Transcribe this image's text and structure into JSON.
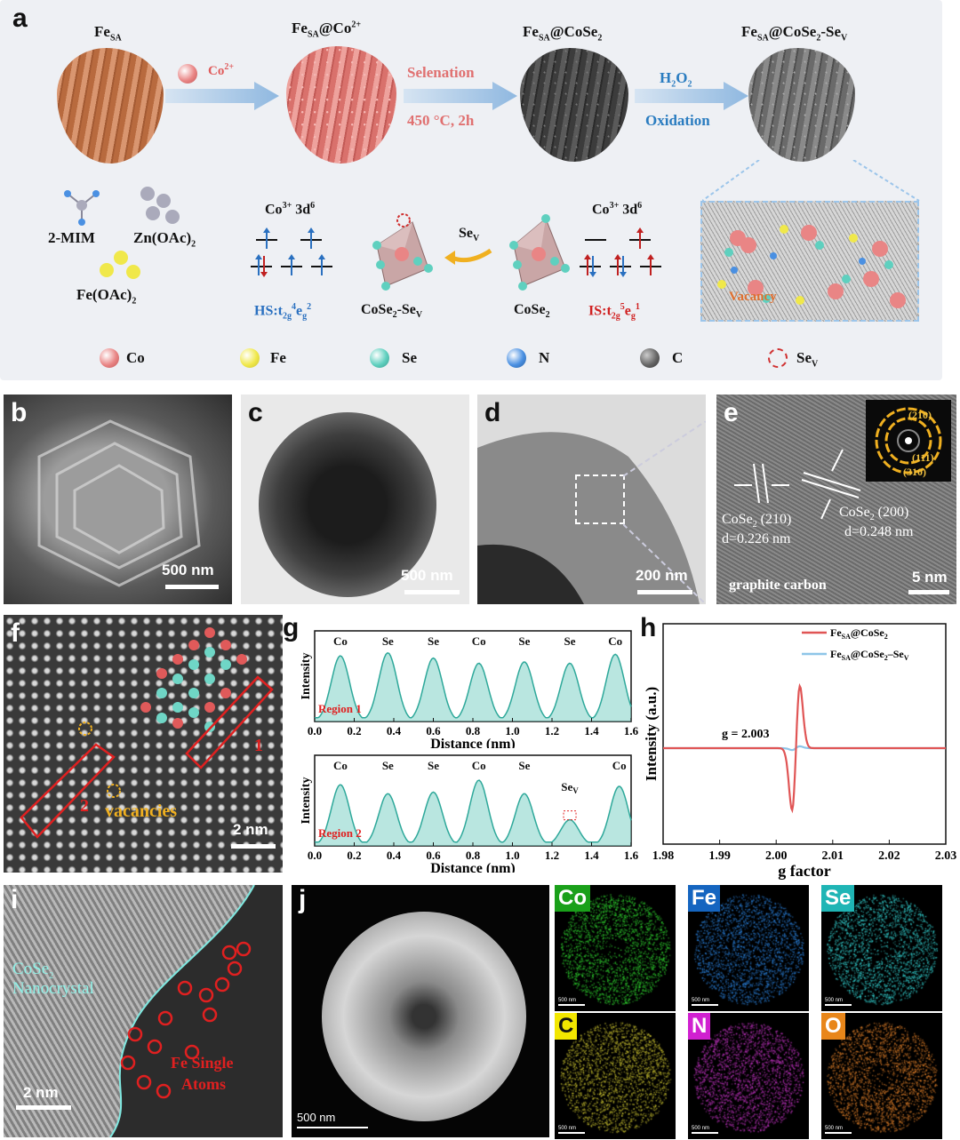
{
  "panel_letters": {
    "a": "a",
    "b": "b",
    "c": "c",
    "d": "d",
    "e": "e",
    "f": "f",
    "g": "g",
    "h": "h",
    "i": "i",
    "j": "j"
  },
  "panel_a": {
    "stage_1": {
      "base": "Fe",
      "sub": "SA"
    },
    "stage_2": {
      "base": "Fe",
      "sub": "SA",
      "rest": "@Co",
      "sup": "2+"
    },
    "stage_3": {
      "base": "Fe",
      "sub": "SA",
      "rest": "@CoSe",
      "sub2": "2"
    },
    "stage_4": {
      "base": "Fe",
      "sub": "SA",
      "rest": "@CoSe",
      "sub2": "2",
      "rest2": "-Se",
      "sub3": "V"
    },
    "arrow_1": {
      "ion": "Co",
      "sup": "2+"
    },
    "arrow_2": {
      "top": "Selenation",
      "bottom": "450 °C, 2h"
    },
    "arrow_3": {
      "top_base": "H",
      "top_sub": "2",
      "top_mid": "O",
      "top_sub2": "2",
      "bottom": "Oxidation"
    },
    "precursors": {
      "mim": "2-MIM",
      "zn": "Zn(OAc)",
      "zn_sub": "2",
      "fe": "Fe(OAc)",
      "fe_sub": "2"
    },
    "spin_left": {
      "title": "Co",
      "title_sup": "3+",
      "title_rest": " 3d",
      "title_sup2": "6",
      "state": "HS:t",
      "state_sub": "2g",
      "state_sup": "4",
      "state_mid": "e",
      "state_sub2": "g",
      "state_sup2": "2"
    },
    "spin_right": {
      "title": "Co",
      "title_sup": "3+",
      "title_rest": " 3d",
      "title_sup2": "6",
      "state": "IS:t",
      "state_sub": "2g",
      "state_sup": "5",
      "state_mid": "e",
      "state_sub2": "g",
      "state_sup2": "1"
    },
    "octa_left": {
      "base": "CoSe",
      "sub": "2",
      "rest": "-Se",
      "sub2": "V"
    },
    "octa_right": {
      "base": "CoSe",
      "sub": "2"
    },
    "sev_arrow": {
      "base": "Se",
      "sub": "V"
    },
    "vacancy_label": "Vacancy",
    "legend": [
      {
        "label": "Co",
        "color": "#e98585"
      },
      {
        "label": "Fe",
        "color": "#f0e84a"
      },
      {
        "label": "Se",
        "color": "#5fd0bf"
      },
      {
        "label": "N",
        "color": "#4a90e2"
      },
      {
        "label": "C",
        "color": "#666666"
      }
    ],
    "legend_sev": {
      "base": "Se",
      "sub": "V"
    }
  },
  "panel_b": {
    "scale": "500 nm"
  },
  "panel_c": {
    "scale": "500 nm"
  },
  "panel_d": {
    "scale": "200 nm"
  },
  "panel_e": {
    "scale": "5 nm",
    "lattice_1": {
      "base": "CoSe",
      "sub": "2",
      "rest": " (210)",
      "d": "d=0.226 nm"
    },
    "lattice_2": {
      "base": "CoSe",
      "sub": "2",
      "rest": " (200)",
      "d": "d=0.248 nm"
    },
    "graphite": "graphite carbon",
    "saed": {
      "r1": "(210)",
      "r2": "(111)",
      "r3": "(310)"
    }
  },
  "panel_f": {
    "scale": "2 nm",
    "vacancies": "vacancies",
    "region_1": "1",
    "region_2": "2"
  },
  "chart_data": [
    {
      "type": "line",
      "panel": "g-top",
      "xlabel": "Distance (nm)",
      "ylabel": "Intensity",
      "region": "Region 1",
      "xlim": [
        0.0,
        1.6
      ],
      "xticks": [
        0.0,
        0.2,
        0.4,
        0.6,
        0.8,
        1.0,
        1.2,
        1.4,
        1.6
      ],
      "peaks": [
        {
          "x": 0.13,
          "label": "Co"
        },
        {
          "x": 0.37,
          "label": "Se"
        },
        {
          "x": 0.6,
          "label": "Se"
        },
        {
          "x": 0.83,
          "label": "Co"
        },
        {
          "x": 1.06,
          "label": "Se"
        },
        {
          "x": 1.29,
          "label": "Se"
        },
        {
          "x": 1.52,
          "label": "Co"
        }
      ],
      "peak_heights": [
        0.88,
        0.92,
        0.85,
        0.78,
        0.8,
        0.78,
        0.9
      ]
    },
    {
      "type": "line",
      "panel": "g-bottom",
      "xlabel": "Distance (nm)",
      "ylabel": "Intensity",
      "region": "Region 2",
      "xlim": [
        0.0,
        1.6
      ],
      "xticks": [
        0.0,
        0.2,
        0.4,
        0.6,
        0.8,
        1.0,
        1.2,
        1.4,
        1.6
      ],
      "peaks": [
        {
          "x": 0.13,
          "label": "Co"
        },
        {
          "x": 0.37,
          "label": "Se"
        },
        {
          "x": 0.6,
          "label": "Se"
        },
        {
          "x": 0.83,
          "label": "Co"
        },
        {
          "x": 1.06,
          "label": "Se"
        },
        {
          "x": 1.29,
          "label": "Se",
          "sub": "V"
        },
        {
          "x": 1.54,
          "label": "Co"
        }
      ],
      "peak_heights": [
        0.82,
        0.7,
        0.72,
        0.88,
        0.7,
        0.35,
        0.8
      ]
    },
    {
      "type": "line",
      "panel": "h",
      "xlabel": "g factor",
      "ylabel": "Intensity (a.u.)",
      "xlim": [
        1.98,
        2.03
      ],
      "xticks": [
        1.98,
        1.99,
        2.0,
        2.01,
        2.02,
        2.03
      ],
      "annotation": "g = 2.003",
      "series": [
        {
          "name_base": "Fe",
          "name_sub": "SA",
          "name_rest": "@CoSe",
          "name_sub2": "2",
          "color": "#e05555",
          "center": 2.0035,
          "amplitude": 1.0
        },
        {
          "name_base": "Fe",
          "name_sub": "SA",
          "name_rest": "@CoSe",
          "name_sub2": "2",
          "name_rest2": "–Se",
          "name_sub3": "V",
          "color": "#8ec5e8",
          "center": 2.0035,
          "amplitude": 0.03
        }
      ]
    }
  ],
  "panel_i": {
    "scale": "2 nm",
    "crystal_base": "CoSe",
    "crystal_sub": "2",
    "crystal_rest": "Nanocrystal",
    "fe_line1": "Fe Single",
    "fe_line2": "Atoms"
  },
  "panel_j": {
    "scale": "500 nm"
  },
  "eds_maps": [
    {
      "label": "Co",
      "bg": "#1aa01a",
      "text": "#ffffff",
      "dot": "#2fd02f",
      "scale": "500 nm",
      "ring": true
    },
    {
      "label": "Fe",
      "bg": "#1565c0",
      "text": "#ffffff",
      "dot": "#2a7fd8",
      "scale": "500 nm",
      "ring": false
    },
    {
      "label": "Se",
      "bg": "#1fb5b5",
      "text": "#ffffff",
      "dot": "#35d5d5",
      "scale": "500 nm",
      "ring": true
    },
    {
      "label": "C",
      "bg": "#f2e600",
      "text": "#111111",
      "dot": "#c8c030",
      "scale": "500 nm",
      "ring": false
    },
    {
      "label": "N",
      "bg": "#d020d0",
      "text": "#ffffff",
      "dot": "#c033c0",
      "scale": "500 nm",
      "ring": false
    },
    {
      "label": "O",
      "bg": "#e8861a",
      "text": "#ffffff",
      "dot": "#e0802a",
      "scale": "500 nm",
      "ring": true
    }
  ]
}
